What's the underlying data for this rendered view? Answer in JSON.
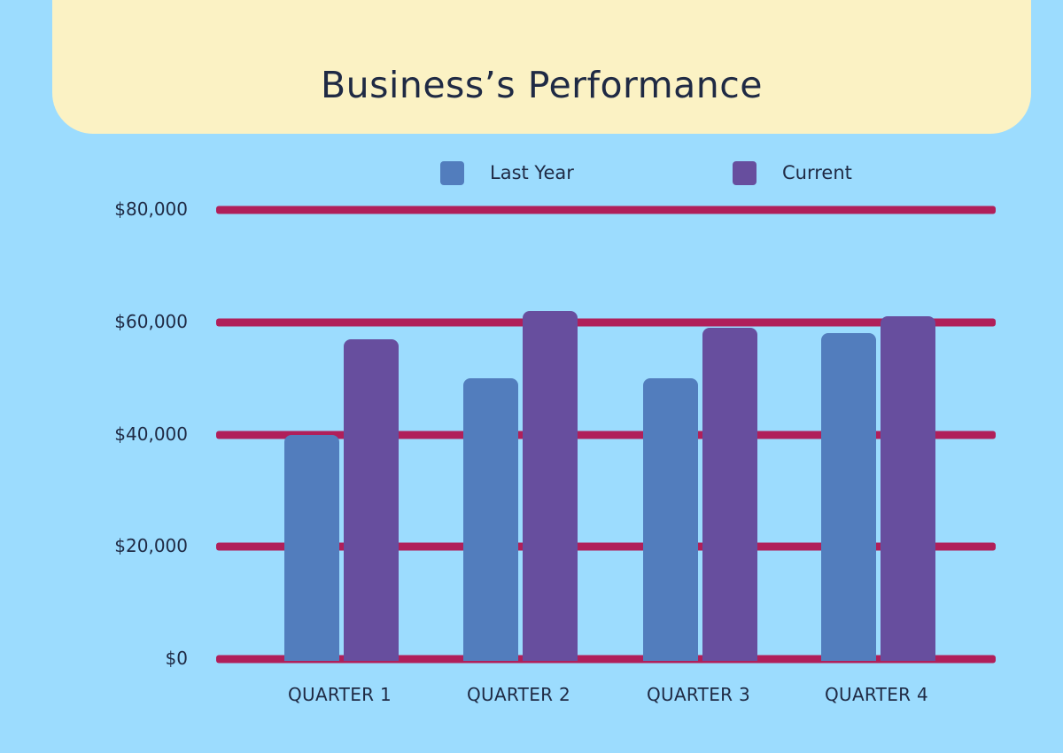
{
  "chart_data": {
    "type": "bar",
    "title": "Business’s Performance",
    "xlabel": "",
    "ylabel": "",
    "categories": [
      "QUARTER 1",
      "QUARTER 2",
      "QUARTER 3",
      "QUARTER 4"
    ],
    "series": [
      {
        "name": "Last Year",
        "color": "#527dbd",
        "values": [
          40000,
          50000,
          50000,
          58000
        ]
      },
      {
        "name": "Current",
        "color": "#674e9e",
        "values": [
          57000,
          62000,
          59000,
          61000
        ]
      }
    ],
    "ylim": [
      0,
      80000
    ],
    "yticks": [
      0,
      20000,
      40000,
      60000,
      80000
    ],
    "ytick_labels": [
      "$0",
      "$20,000",
      "$40,000",
      "$60,000",
      "$80,000"
    ],
    "grid": true,
    "legend_position": "top"
  },
  "colors": {
    "background": "#9cdcfe",
    "header_card": "#fbf2c4",
    "gridline": "#b01f5a",
    "text": "#1f2a44"
  },
  "header": {
    "title": "Business’s Performance"
  },
  "legend": [
    {
      "label": "Last Year",
      "color": "#527dbd"
    },
    {
      "label": "Current",
      "color": "#674e9e"
    }
  ]
}
